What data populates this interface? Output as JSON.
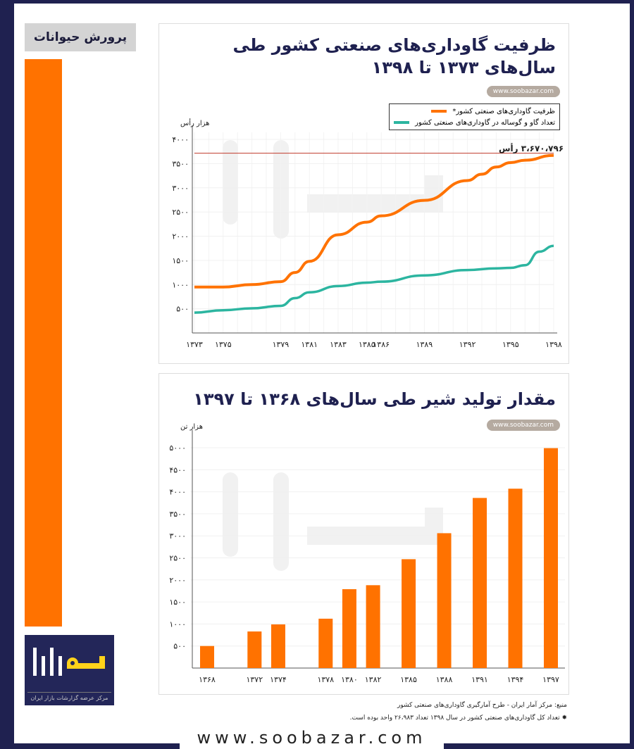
{
  "sidebar": {
    "section_label": "پرورش حیوانات",
    "logo_text": "سوبازار",
    "logo_subtitle": "مرکز عرضه گزارشات بازار ایران"
  },
  "colors": {
    "orange": "#ff7200",
    "teal": "#2cb5a0",
    "navy": "#1f2150"
  },
  "footer": {
    "source": "منبع: مرکز آمار ایران - طرح آمارگیری گاوداری‌های صنعتی کشور",
    "note": "تعداد کل گاوداری‌های صنعتی کشور در سال ۱۳۹۸ تعداد ۲۶،۹۸۳ واحد بوده است.",
    "url": "www.soobazar.com"
  },
  "chart_data": [
    {
      "type": "line",
      "title": "ظرفیت گاوداری‌های صنعتی کشور طی سال‌های ۱۳۷۳ تا ۱۳۹۸",
      "watermark_url": "www.soobazar.com",
      "ylabel": "هزار رأس",
      "ylim": [
        0,
        4000
      ],
      "yticks": [
        500,
        1000,
        1500,
        2000,
        2500,
        3000,
        3500,
        4000
      ],
      "ytick_labels": [
        "۵۰۰",
        "۱۰۰۰",
        "۱۵۰۰",
        "۲۰۰۰",
        "۲۵۰۰",
        "۳۰۰۰",
        "۳۵۰۰",
        "۴۰۰۰"
      ],
      "xlim": [
        1373,
        1398
      ],
      "xticks": [
        1373,
        1375,
        1379,
        1381,
        1383,
        1385,
        1386,
        1389,
        1392,
        1395,
        1398
      ],
      "xtick_labels": [
        "۱۳۷۳",
        "۱۳۷۵",
        "۱۳۷۹",
        "۱۳۸۱",
        "۱۳۸۳",
        "۱۳۸۵",
        "۱۳۸۶",
        "۱۳۸۹",
        "۱۳۹۲",
        "۱۳۹۵",
        "۱۳۹۸"
      ],
      "reference_line": {
        "value": 3670.796,
        "label": "۳،۶۷۰،۷۹۶ رأس"
      },
      "legend": "top-right",
      "series": [
        {
          "name": "ظرفیت گاوداری‌های صنعتی کشور*",
          "color": "#ff7200",
          "x": [
            1373,
            1375,
            1377,
            1379,
            1380,
            1381,
            1383,
            1385,
            1386,
            1389,
            1392,
            1393,
            1394,
            1395,
            1396,
            1398
          ],
          "y": [
            950,
            950,
            1000,
            1060,
            1250,
            1480,
            2030,
            2290,
            2420,
            2740,
            3150,
            3280,
            3430,
            3520,
            3570,
            3670
          ]
        },
        {
          "name": "تعداد گاو و گوساله در گاوداری‌های صنعتی کشور",
          "color": "#2cb5a0",
          "x": [
            1373,
            1375,
            1377,
            1379,
            1380,
            1381,
            1383,
            1385,
            1386,
            1389,
            1392,
            1394,
            1395,
            1396,
            1397,
            1398
          ],
          "y": [
            420,
            470,
            510,
            560,
            720,
            840,
            970,
            1040,
            1060,
            1190,
            1300,
            1335,
            1345,
            1400,
            1680,
            1800
          ]
        }
      ]
    },
    {
      "type": "bar",
      "title": "مقدار تولید شیر طی سال‌های ۱۳۶۸ تا ۱۳۹۷",
      "watermark_url": "www.soobazar.com",
      "ylabel": "هزار تن",
      "ylim": [
        0,
        5000
      ],
      "yticks": [
        500,
        1000,
        1500,
        2000,
        2500,
        3000,
        3500,
        4000,
        4500,
        5000
      ],
      "ytick_labels": [
        "۵۰۰",
        "۱۰۰۰",
        "۱۵۰۰",
        "۲۰۰۰",
        "۲۵۰۰",
        "۳۰۰۰",
        "۳۵۰۰",
        "۴۰۰۰",
        "۴۵۰۰",
        "۵۰۰۰"
      ],
      "xlim": [
        1368,
        1397
      ],
      "categories": [
        1368,
        1372,
        1374,
        1378,
        1380,
        1382,
        1385,
        1388,
        1391,
        1394,
        1397
      ],
      "category_labels": [
        "۱۳۶۸",
        "۱۳۷۲",
        "۱۳۷۴",
        "۱۳۷۸",
        "۱۳۸۰",
        "۱۳۸۲",
        "۱۳۸۵",
        "۱۳۸۸",
        "۱۳۹۱",
        "۱۳۹۴",
        "۱۳۹۷"
      ],
      "values": [
        500,
        830,
        990,
        1120,
        1790,
        1880,
        2470,
        3060,
        3860,
        4070,
        4990
      ],
      "color": "#ff7200"
    }
  ]
}
